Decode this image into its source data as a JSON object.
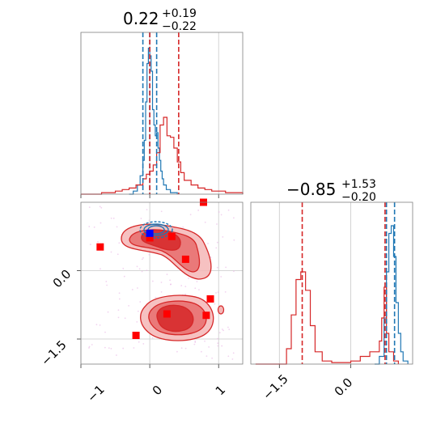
{
  "colors": {
    "blue": "#1f77b4",
    "red": "#d62728",
    "red_fill_light": "#f4b6b6",
    "red_fill_mid": "#e86c6c",
    "red_fill_dark": "#d62728",
    "marker": "#ff0000",
    "truth": "#0000ff",
    "scatter": "#e9b8e6"
  },
  "chart_data": [
    {
      "type": "histogram",
      "panel": "top-left",
      "title": {
        "value": "0.22",
        "plus": "+0.19",
        "minus": "−0.22"
      },
      "xlim": [
        -1.0,
        1.35
      ],
      "grid": true,
      "tick_labels_x": [],
      "series": [
        {
          "color": "blue",
          "x": [
            -0.3,
            -0.24,
            -0.18,
            -0.14,
            -0.1,
            -0.08,
            -0.06,
            -0.04,
            -0.02,
            0.0,
            0.02,
            0.04,
            0.06,
            0.08,
            0.1,
            0.12,
            0.14,
            0.16,
            0.18,
            0.2,
            0.24,
            0.3,
            0.4
          ],
          "y": [
            0.0,
            0.02,
            0.06,
            0.12,
            0.22,
            0.35,
            0.6,
            0.85,
            0.95,
            0.9,
            0.8,
            0.55,
            0.45,
            0.38,
            0.4,
            0.3,
            0.22,
            0.15,
            0.1,
            0.06,
            0.03,
            0.01,
            0.0
          ]
        },
        {
          "color": "red",
          "x": [
            -1.0,
            -0.9,
            -0.7,
            -0.5,
            -0.4,
            -0.3,
            -0.2,
            -0.1,
            -0.05,
            0.0,
            0.05,
            0.1,
            0.15,
            0.2,
            0.25,
            0.3,
            0.35,
            0.4,
            0.45,
            0.5,
            0.6,
            0.7,
            0.8,
            0.9,
            1.1,
            1.35
          ],
          "y": [
            0.0,
            0.0,
            0.01,
            0.02,
            0.03,
            0.04,
            0.06,
            0.1,
            0.13,
            0.15,
            0.19,
            0.27,
            0.45,
            0.5,
            0.38,
            0.37,
            0.3,
            0.21,
            0.14,
            0.09,
            0.06,
            0.04,
            0.03,
            0.02,
            0.01,
            0.0
          ]
        }
      ],
      "vlines": [
        {
          "color": "blue",
          "x": [
            -0.1,
            0.0,
            0.1
          ]
        },
        {
          "color": "red",
          "x": [
            0.0,
            0.42
          ]
        }
      ]
    },
    {
      "type": "contour_scatter",
      "panel": "bottom-left",
      "xlim": [
        -1.0,
        1.35
      ],
      "ylim": [
        -2.05,
        1.5
      ],
      "grid": true,
      "tick_labels_x": [
        "−1",
        "0",
        "1"
      ],
      "tick_labels_y": [
        "0.0",
        "−1.5"
      ],
      "truth": {
        "x": 0.0,
        "y": 0.82
      },
      "markers": [
        {
          "x": 0.0,
          "y": 0.72
        },
        {
          "x": 0.32,
          "y": 0.75
        },
        {
          "x": -0.72,
          "y": 0.52
        },
        {
          "x": 0.52,
          "y": 0.25
        },
        {
          "x": 0.78,
          "y": 1.5
        },
        {
          "x": 0.88,
          "y": -0.62
        },
        {
          "x": 0.25,
          "y": -0.95
        },
        {
          "x": 0.82,
          "y": -0.98
        },
        {
          "x": -0.2,
          "y": -1.42
        }
      ]
    },
    {
      "type": "histogram",
      "panel": "bottom-right",
      "title": {
        "value": "−0.85",
        "plus": "+1.53",
        "minus": "−0.20"
      },
      "xlim": [
        -2.1,
        1.3
      ],
      "grid": true,
      "tick_labels_x": [
        "−1.5",
        "0.0"
      ],
      "series": [
        {
          "color": "blue",
          "x": [
            0.5,
            0.6,
            0.7,
            0.75,
            0.8,
            0.85,
            0.9,
            0.95,
            1.0,
            1.05,
            1.1,
            1.2
          ],
          "y": [
            0.0,
            0.05,
            0.3,
            0.6,
            0.85,
            0.9,
            0.7,
            0.4,
            0.2,
            0.08,
            0.02,
            0.0
          ]
        },
        {
          "color": "red",
          "x": [
            -2.0,
            -1.5,
            -1.35,
            -1.25,
            -1.15,
            -1.05,
            -0.95,
            -0.85,
            -0.75,
            -0.6,
            -0.4,
            -0.2,
            0.0,
            0.2,
            0.4,
            0.6,
            0.65,
            0.7,
            0.75,
            0.8,
            0.9,
            1.0
          ],
          "y": [
            0.0,
            0.0,
            0.1,
            0.32,
            0.55,
            0.6,
            0.48,
            0.25,
            0.08,
            0.02,
            0.01,
            0.01,
            0.02,
            0.05,
            0.08,
            0.15,
            0.3,
            0.5,
            0.2,
            0.08,
            0.02,
            0.0
          ]
        }
      ],
      "vlines": [
        {
          "color": "blue",
          "x": [
            0.75,
            0.92
          ]
        },
        {
          "color": "red",
          "x": [
            -1.02,
            0.72
          ]
        }
      ]
    }
  ]
}
